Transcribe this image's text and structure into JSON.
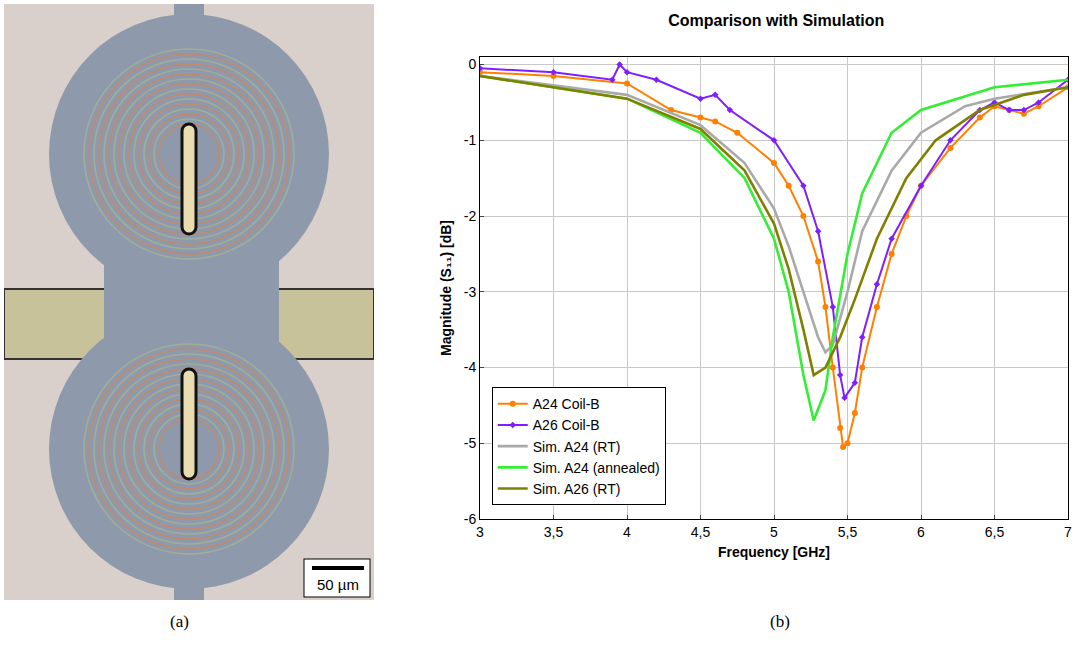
{
  "micrograph": {
    "panel_label": "(a)",
    "scale_bar": "50 µm"
  },
  "chart_data": {
    "type": "line",
    "panel_label": "(b)",
    "title": "Comparison with Simulation",
    "x_label": "Frequency [GHz]",
    "y_label": "Magnitude (S₁₁) [dB]",
    "xlim": [
      3,
      7
    ],
    "xticks": [
      3,
      {
        "value": 3.5,
        "label": "3,5"
      },
      4,
      {
        "value": 4.5,
        "label": "4,5"
      },
      5,
      {
        "value": 5.5,
        "label": "5,5"
      },
      6,
      {
        "value": 6.5,
        "label": "6,5"
      },
      7
    ],
    "ylim": [
      -6,
      0.1
    ],
    "yticks": [
      -6,
      -5,
      -4,
      -3,
      -2,
      -1,
      0
    ],
    "grid": true,
    "legend": "lower left",
    "series": [
      {
        "name": "A24 Coil-B",
        "color": "#ff8000",
        "marker": "circle",
        "line_style": "solid",
        "x": [
          3,
          3.5,
          4,
          4.3,
          4.5,
          4.6,
          4.75,
          5.0,
          5.1,
          5.2,
          5.3,
          5.35,
          5.4,
          5.45,
          5.47,
          5.5,
          5.55,
          5.6,
          5.7,
          5.8,
          5.9,
          6.0,
          6.2,
          6.4,
          6.5,
          6.6,
          6.7,
          6.8,
          7.0
        ],
        "values": [
          -0.1,
          -0.15,
          -0.25,
          -0.6,
          -0.7,
          -0.75,
          -0.9,
          -1.3,
          -1.6,
          -2.0,
          -2.6,
          -3.2,
          -4.0,
          -4.8,
          -5.05,
          -5.0,
          -4.6,
          -4.0,
          -3.2,
          -2.5,
          -2.0,
          -1.6,
          -1.1,
          -0.7,
          -0.55,
          -0.6,
          -0.65,
          -0.55,
          -0.3
        ]
      },
      {
        "name": "A26 Coil-B",
        "color": "#7f1fff",
        "marker": "diamond",
        "line_style": "solid",
        "x": [
          3,
          3.5,
          3.9,
          3.95,
          4.0,
          4.2,
          4.5,
          4.6,
          4.7,
          5.0,
          5.2,
          5.3,
          5.4,
          5.45,
          5.48,
          5.55,
          5.6,
          5.7,
          5.8,
          6.0,
          6.2,
          6.4,
          6.5,
          6.6,
          6.7,
          6.8,
          7.0
        ],
        "values": [
          -0.05,
          -0.1,
          -0.2,
          0.0,
          -0.1,
          -0.2,
          -0.45,
          -0.4,
          -0.6,
          -1.0,
          -1.6,
          -2.2,
          -3.2,
          -4.1,
          -4.4,
          -4.2,
          -3.6,
          -2.9,
          -2.3,
          -1.6,
          -1.0,
          -0.6,
          -0.5,
          -0.6,
          -0.6,
          -0.5,
          -0.2
        ]
      },
      {
        "name": "Sim. A24 (RT)",
        "color": "#a9a9a9",
        "marker": "none",
        "line_style": "solid",
        "x": [
          3,
          4,
          4.5,
          4.8,
          5.0,
          5.1,
          5.2,
          5.3,
          5.35,
          5.4,
          5.5,
          5.6,
          5.8,
          6.0,
          6.3,
          6.5,
          7.0
        ],
        "values": [
          -0.15,
          -0.4,
          -0.8,
          -1.3,
          -1.9,
          -2.4,
          -3.0,
          -3.6,
          -3.8,
          -3.7,
          -3.0,
          -2.2,
          -1.4,
          -0.9,
          -0.55,
          -0.45,
          -0.3
        ]
      },
      {
        "name": "Sim. A24 (annealed)",
        "color": "#33ee33",
        "marker": "none",
        "line_style": "solid",
        "x": [
          3,
          4,
          4.5,
          4.8,
          5.0,
          5.1,
          5.2,
          5.27,
          5.35,
          5.4,
          5.5,
          5.6,
          5.8,
          6.0,
          6.5,
          7.0
        ],
        "values": [
          -0.15,
          -0.45,
          -0.9,
          -1.5,
          -2.3,
          -3.0,
          -4.1,
          -4.7,
          -4.3,
          -3.6,
          -2.5,
          -1.7,
          -0.9,
          -0.6,
          -0.3,
          -0.2
        ]
      },
      {
        "name": "Sim. A26 (RT)",
        "color": "#808000",
        "marker": "none",
        "line_style": "solid",
        "x": [
          3,
          4,
          4.5,
          4.8,
          5.0,
          5.1,
          5.2,
          5.27,
          5.35,
          5.45,
          5.55,
          5.7,
          5.9,
          6.1,
          6.4,
          6.7,
          7.0
        ],
        "values": [
          -0.15,
          -0.45,
          -0.85,
          -1.4,
          -2.1,
          -2.7,
          -3.5,
          -4.1,
          -4.0,
          -3.6,
          -3.1,
          -2.3,
          -1.5,
          -1.0,
          -0.6,
          -0.4,
          -0.3
        ]
      }
    ]
  }
}
